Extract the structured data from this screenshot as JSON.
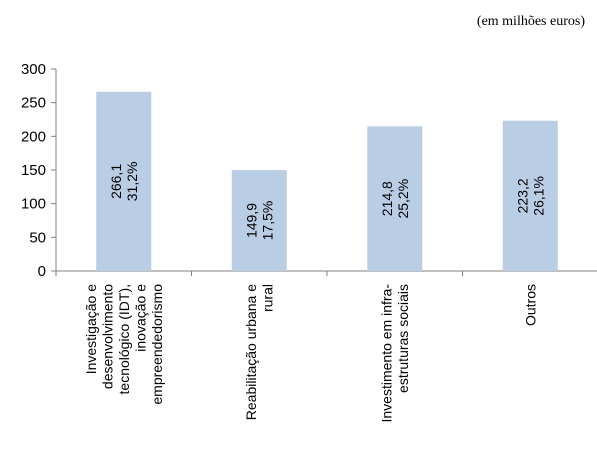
{
  "unit_note": "(em milhões euros)",
  "chart_data": {
    "type": "bar",
    "categories": [
      [
        "Investigação e",
        "desenvolvimento",
        "tecnológico (IDT),",
        "inovação e",
        "empreendedorismo"
      ],
      [
        "Reabilitação urbana e",
        "rural"
      ],
      [
        "Investimento em infra-",
        "estruturas sociais"
      ],
      [
        "Outros"
      ]
    ],
    "values": [
      266.1,
      149.9,
      214.8,
      223.2
    ],
    "data_labels": [
      [
        "266,1",
        "31,2%"
      ],
      [
        "149,9",
        "17,5%"
      ],
      [
        "214,8",
        "25,2%"
      ],
      [
        "223,2",
        "26,1%"
      ]
    ],
    "ylim": [
      0,
      300
    ],
    "yticks": [
      "0",
      "50",
      "100",
      "150",
      "200",
      "250",
      "300"
    ],
    "grid": false,
    "colors": {
      "bar": "#b9cde5",
      "axis": "#808080"
    }
  }
}
